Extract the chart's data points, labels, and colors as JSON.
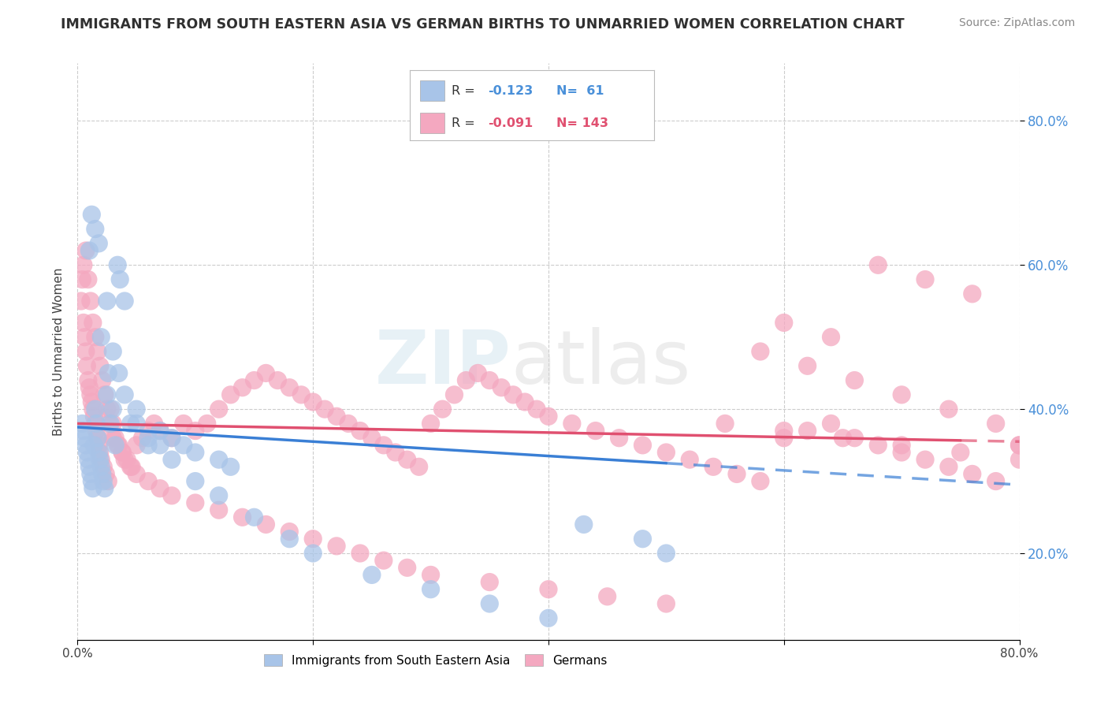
{
  "title": "IMMIGRANTS FROM SOUTH EASTERN ASIA VS GERMAN BIRTHS TO UNMARRIED WOMEN CORRELATION CHART",
  "source_text": "Source: ZipAtlas.com",
  "ylabel": "Births to Unmarried Women",
  "legend_blue_label": "Immigrants from South Eastern Asia",
  "legend_pink_label": "Germans",
  "blue_dot_color": "#a8c4e8",
  "pink_dot_color": "#f4a8c0",
  "blue_line_color": "#3a7fd5",
  "pink_line_color": "#e05070",
  "background_color": "#ffffff",
  "grid_color": "#cccccc",
  "title_color": "#303030",
  "right_tick_color": "#4a90d9",
  "xlim": [
    0.0,
    0.8
  ],
  "ylim": [
    0.08,
    0.88
  ],
  "blue_line_start": 0.0,
  "blue_line_solid_end": 0.5,
  "blue_line_end": 0.8,
  "pink_line_start": 0.0,
  "pink_line_solid_end": 0.75,
  "pink_line_end": 0.8,
  "blue_line_y_at_0": 0.375,
  "blue_line_y_at_05": 0.325,
  "blue_line_y_at_08": 0.3,
  "pink_line_y_at_0": 0.38,
  "pink_line_y_at_08": 0.355,
  "blue_scatter_x": [
    0.004,
    0.005,
    0.006,
    0.007,
    0.008,
    0.009,
    0.01,
    0.011,
    0.012,
    0.013,
    0.014,
    0.015,
    0.016,
    0.017,
    0.018,
    0.019,
    0.02,
    0.021,
    0.022,
    0.023,
    0.025,
    0.026,
    0.028,
    0.03,
    0.032,
    0.034,
    0.036,
    0.04,
    0.045,
    0.05,
    0.06,
    0.07,
    0.08,
    0.09,
    0.1,
    0.12,
    0.13,
    0.01,
    0.012,
    0.015,
    0.018,
    0.02,
    0.025,
    0.03,
    0.035,
    0.04,
    0.05,
    0.06,
    0.07,
    0.08,
    0.1,
    0.12,
    0.15,
    0.18,
    0.2,
    0.25,
    0.3,
    0.35,
    0.4,
    0.43,
    0.48,
    0.5
  ],
  "blue_scatter_y": [
    0.38,
    0.37,
    0.36,
    0.35,
    0.34,
    0.33,
    0.32,
    0.31,
    0.3,
    0.29,
    0.35,
    0.4,
    0.38,
    0.36,
    0.34,
    0.33,
    0.32,
    0.31,
    0.3,
    0.29,
    0.42,
    0.45,
    0.38,
    0.4,
    0.35,
    0.6,
    0.58,
    0.55,
    0.38,
    0.4,
    0.35,
    0.37,
    0.36,
    0.35,
    0.34,
    0.33,
    0.32,
    0.62,
    0.67,
    0.65,
    0.63,
    0.5,
    0.55,
    0.48,
    0.45,
    0.42,
    0.38,
    0.36,
    0.35,
    0.33,
    0.3,
    0.28,
    0.25,
    0.22,
    0.2,
    0.17,
    0.15,
    0.13,
    0.11,
    0.24,
    0.22,
    0.2
  ],
  "pink_scatter_x": [
    0.003,
    0.004,
    0.005,
    0.006,
    0.007,
    0.008,
    0.009,
    0.01,
    0.011,
    0.012,
    0.013,
    0.014,
    0.015,
    0.016,
    0.017,
    0.018,
    0.019,
    0.02,
    0.022,
    0.024,
    0.026,
    0.028,
    0.03,
    0.032,
    0.035,
    0.038,
    0.04,
    0.045,
    0.05,
    0.055,
    0.06,
    0.065,
    0.07,
    0.08,
    0.09,
    0.1,
    0.11,
    0.12,
    0.13,
    0.14,
    0.15,
    0.16,
    0.17,
    0.18,
    0.19,
    0.2,
    0.21,
    0.22,
    0.23,
    0.24,
    0.25,
    0.26,
    0.27,
    0.28,
    0.29,
    0.3,
    0.31,
    0.32,
    0.33,
    0.34,
    0.35,
    0.36,
    0.37,
    0.38,
    0.39,
    0.4,
    0.42,
    0.44,
    0.46,
    0.48,
    0.5,
    0.52,
    0.54,
    0.56,
    0.58,
    0.6,
    0.62,
    0.64,
    0.66,
    0.68,
    0.7,
    0.72,
    0.74,
    0.76,
    0.78,
    0.8,
    0.005,
    0.007,
    0.009,
    0.011,
    0.013,
    0.015,
    0.017,
    0.019,
    0.021,
    0.023,
    0.025,
    0.027,
    0.03,
    0.034,
    0.038,
    0.042,
    0.046,
    0.05,
    0.06,
    0.07,
    0.08,
    0.1,
    0.12,
    0.14,
    0.16,
    0.18,
    0.2,
    0.22,
    0.24,
    0.26,
    0.28,
    0.3,
    0.35,
    0.4,
    0.45,
    0.5,
    0.55,
    0.6,
    0.65,
    0.7,
    0.75,
    0.8,
    0.68,
    0.72,
    0.76,
    0.6,
    0.64,
    0.58,
    0.62,
    0.66,
    0.7,
    0.74,
    0.78,
    0.8
  ],
  "pink_scatter_y": [
    0.55,
    0.58,
    0.52,
    0.5,
    0.48,
    0.46,
    0.44,
    0.43,
    0.42,
    0.41,
    0.4,
    0.39,
    0.38,
    0.37,
    0.36,
    0.35,
    0.34,
    0.33,
    0.32,
    0.31,
    0.3,
    0.4,
    0.38,
    0.36,
    0.35,
    0.34,
    0.33,
    0.32,
    0.35,
    0.36,
    0.37,
    0.38,
    0.37,
    0.36,
    0.38,
    0.37,
    0.38,
    0.4,
    0.42,
    0.43,
    0.44,
    0.45,
    0.44,
    0.43,
    0.42,
    0.41,
    0.4,
    0.39,
    0.38,
    0.37,
    0.36,
    0.35,
    0.34,
    0.33,
    0.32,
    0.38,
    0.4,
    0.42,
    0.44,
    0.45,
    0.44,
    0.43,
    0.42,
    0.41,
    0.4,
    0.39,
    0.38,
    0.37,
    0.36,
    0.35,
    0.34,
    0.33,
    0.32,
    0.31,
    0.3,
    0.36,
    0.37,
    0.38,
    0.36,
    0.35,
    0.34,
    0.33,
    0.32,
    0.31,
    0.3,
    0.35,
    0.6,
    0.62,
    0.58,
    0.55,
    0.52,
    0.5,
    0.48,
    0.46,
    0.44,
    0.42,
    0.4,
    0.38,
    0.36,
    0.35,
    0.34,
    0.33,
    0.32,
    0.31,
    0.3,
    0.29,
    0.28,
    0.27,
    0.26,
    0.25,
    0.24,
    0.23,
    0.22,
    0.21,
    0.2,
    0.19,
    0.18,
    0.17,
    0.16,
    0.15,
    0.14,
    0.13,
    0.38,
    0.37,
    0.36,
    0.35,
    0.34,
    0.33,
    0.6,
    0.58,
    0.56,
    0.52,
    0.5,
    0.48,
    0.46,
    0.44,
    0.42,
    0.4,
    0.38,
    0.35
  ]
}
